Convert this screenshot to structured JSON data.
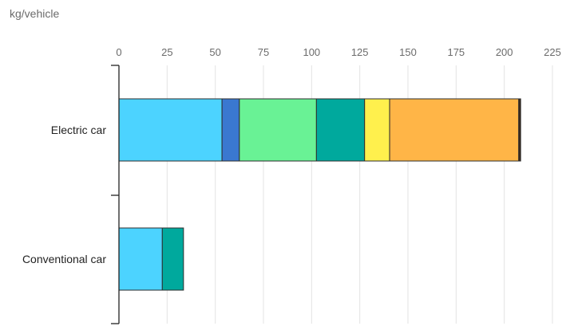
{
  "chart_data": {
    "type": "bar",
    "orientation": "horizontal",
    "stacked": true,
    "title": "",
    "unit_label": "kg/vehicle",
    "xlim": [
      0,
      225
    ],
    "x_ticks": [
      0,
      25,
      50,
      75,
      100,
      125,
      150,
      175,
      200,
      225
    ],
    "grid": true,
    "categories": [
      "Electric car",
      "Conventional car"
    ],
    "series": [
      {
        "color": "#4cd3ff",
        "values": [
          53.5,
          22.5
        ]
      },
      {
        "color": "#3a78d0",
        "values": [
          9,
          0
        ]
      },
      {
        "color": "#69f295",
        "values": [
          40,
          0
        ]
      },
      {
        "color": "#00a99d",
        "values": [
          25,
          11
        ]
      },
      {
        "color": "#fff04d",
        "values": [
          13,
          0
        ]
      },
      {
        "color": "#ffb547",
        "values": [
          67,
          0
        ]
      },
      {
        "color": "#3b2a1c",
        "values": [
          1,
          0
        ]
      }
    ]
  }
}
